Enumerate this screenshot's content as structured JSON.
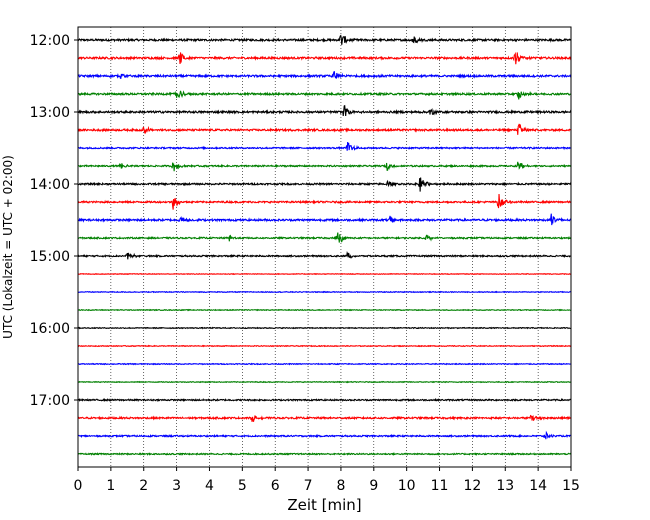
{
  "chart_data": {
    "type": "line",
    "title": "",
    "xlabel": "Zeit  [min]",
    "ylabel": "UTC (Lokalzeit = UTC + 02:00)",
    "xlim": [
      0,
      15
    ],
    "x_ticks": [
      "0",
      "1",
      "2",
      "3",
      "4",
      "5",
      "6",
      "7",
      "8",
      "9",
      "10",
      "11",
      "12",
      "13",
      "14",
      "15"
    ],
    "y_tick_labels": [
      "12:00",
      "13:00",
      "14:00",
      "15:00",
      "16:00",
      "17:00"
    ],
    "grid": {
      "vertical": true,
      "style": "dotted"
    },
    "trace_colors": [
      "#000000",
      "#ff0000",
      "#0000ff",
      "#008000"
    ],
    "trace_start_times": [
      "12:00",
      "12:15",
      "12:30",
      "12:45",
      "13:00",
      "13:15",
      "13:30",
      "13:45",
      "14:00",
      "14:15",
      "14:30",
      "14:45",
      "15:00",
      "15:15",
      "15:30",
      "15:45",
      "16:00",
      "16:15",
      "16:30",
      "16:45",
      "17:00",
      "17:15",
      "17:30",
      "17:45"
    ],
    "trace_duration_min": 15,
    "events": [
      {
        "row": 0,
        "t": 8.0,
        "amp": 1.0
      },
      {
        "row": 0,
        "t": 10.2,
        "amp": 0.6
      },
      {
        "row": 1,
        "t": 3.1,
        "amp": 0.9
      },
      {
        "row": 1,
        "t": 13.3,
        "amp": 1.0
      },
      {
        "row": 2,
        "t": 1.3,
        "amp": 0.4
      },
      {
        "row": 2,
        "t": 7.8,
        "amp": 0.6
      },
      {
        "row": 3,
        "t": 3.0,
        "amp": 0.9
      },
      {
        "row": 3,
        "t": 13.4,
        "amp": 0.8
      },
      {
        "row": 4,
        "t": 8.1,
        "amp": 0.9
      },
      {
        "row": 4,
        "t": 10.7,
        "amp": 0.5
      },
      {
        "row": 5,
        "t": 2.0,
        "amp": 0.6
      },
      {
        "row": 5,
        "t": 13.4,
        "amp": 0.9
      },
      {
        "row": 6,
        "t": 8.2,
        "amp": 0.8
      },
      {
        "row": 7,
        "t": 1.3,
        "amp": 0.5
      },
      {
        "row": 7,
        "t": 2.9,
        "amp": 0.9
      },
      {
        "row": 7,
        "t": 9.4,
        "amp": 0.5
      },
      {
        "row": 7,
        "t": 13.4,
        "amp": 0.7
      },
      {
        "row": 8,
        "t": 9.4,
        "amp": 0.5
      },
      {
        "row": 8,
        "t": 10.4,
        "amp": 1.0
      },
      {
        "row": 9,
        "t": 2.9,
        "amp": 0.9
      },
      {
        "row": 9,
        "t": 12.8,
        "amp": 1.0
      },
      {
        "row": 10,
        "t": 3.1,
        "amp": 0.5
      },
      {
        "row": 10,
        "t": 9.5,
        "amp": 0.5
      },
      {
        "row": 10,
        "t": 14.4,
        "amp": 0.8
      },
      {
        "row": 11,
        "t": 4.6,
        "amp": 0.4
      },
      {
        "row": 11,
        "t": 7.9,
        "amp": 1.0
      },
      {
        "row": 11,
        "t": 10.6,
        "amp": 0.4
      },
      {
        "row": 12,
        "t": 1.5,
        "amp": 0.6
      },
      {
        "row": 12,
        "t": 8.2,
        "amp": 0.4
      },
      {
        "row": 21,
        "t": 5.3,
        "amp": 0.5
      },
      {
        "row": 21,
        "t": 13.8,
        "amp": 0.6
      },
      {
        "row": 22,
        "t": 14.2,
        "amp": 0.5
      }
    ],
    "noise_level": [
      0.3,
      0.3,
      0.3,
      0.28,
      0.3,
      0.28,
      0.22,
      0.22,
      0.25,
      0.25,
      0.3,
      0.22,
      0.22,
      0.1,
      0.12,
      0.12,
      0.14,
      0.12,
      0.14,
      0.12,
      0.22,
      0.26,
      0.22,
      0.2
    ]
  }
}
